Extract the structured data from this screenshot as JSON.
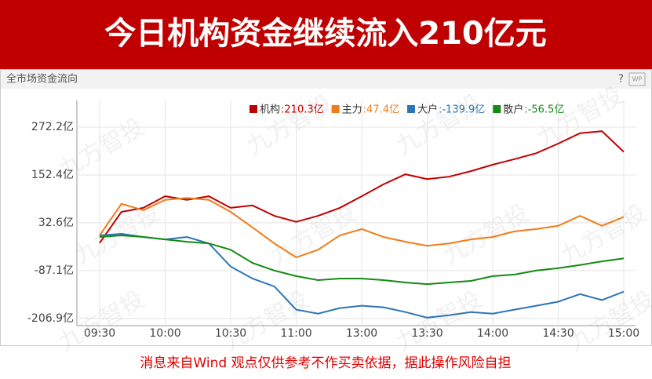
{
  "banner_title": "今日机构资金继续流入210亿元",
  "panel_title": "全市场资金流向",
  "help_icon": "?",
  "logo": "WP",
  "watermark": "九方智投",
  "disclaimer": "消息来自Wind  观点仅供参考不作买卖依据，据此操作风险自担",
  "chart_data": {
    "type": "line",
    "categories": [
      "09:30",
      null,
      null,
      "10:00",
      null,
      null,
      "10:30",
      null,
      null,
      "11:00",
      null,
      null,
      "13:00",
      null,
      null,
      "13:30",
      null,
      null,
      "14:00",
      null,
      null,
      "14:30",
      null,
      null,
      "15:00"
    ],
    "series": [
      {
        "name": "机构",
        "legend_value": ":210.3亿",
        "color": "#c00000",
        "values": [
          -18,
          60,
          70,
          99,
          90,
          99,
          70,
          76,
          50,
          35,
          50,
          70,
          99,
          129,
          154,
          142,
          148,
          162,
          178,
          192,
          207,
          231,
          257,
          262,
          210.3
        ]
      },
      {
        "name": "主力",
        "legend_value": ":47.4亿",
        "color": "#f07c1a",
        "values": [
          1,
          80,
          64,
          90,
          95,
          90,
          60,
          21,
          -19,
          -54,
          -35,
          1,
          17,
          -3,
          -15,
          -25,
          -19,
          -9,
          -3,
          11,
          17,
          25,
          50,
          25,
          47.4
        ]
      },
      {
        "name": "大户",
        "legend_value": ":-139.9亿",
        "color": "#2e75b6",
        "values": [
          1,
          5,
          -3,
          -9,
          -3,
          -19,
          -77,
          -107,
          -127,
          -185,
          -195,
          -181,
          -175,
          -179,
          -191,
          -205,
          -199,
          -191,
          -195,
          -185,
          -175,
          -165,
          -146,
          -161,
          -139.9
        ]
      },
      {
        "name": "散户",
        "legend_value": ":-56.5亿",
        "color": "#138a13",
        "values": [
          -3,
          1,
          -3,
          -9,
          -15,
          -19,
          -35,
          -68,
          -87,
          -101,
          -111,
          -107,
          -107,
          -111,
          -117,
          -121,
          -117,
          -113,
          -101,
          -97,
          -87,
          -81,
          -73,
          -64,
          -56.5
        ]
      }
    ],
    "ylim": [
      -225,
      339
    ],
    "yticks": [
      {
        "value": -206.9,
        "label": "-206.9亿"
      },
      {
        "value": -87.1,
        "label": "-87.1亿"
      },
      {
        "value": 32.6,
        "label": "32.6亿"
      },
      {
        "value": 152.4,
        "label": "152.4亿"
      },
      {
        "value": 272.2,
        "label": "272.2亿"
      }
    ],
    "grid": true
  }
}
